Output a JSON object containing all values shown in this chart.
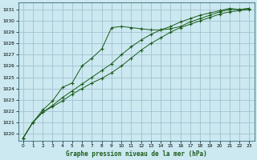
{
  "bg_color": "#cce8f0",
  "plot_bg_color": "#cce8f0",
  "grid_color": "#99bbcc",
  "line_color": "#1a5c1a",
  "xlabel": "Graphe pression niveau de la mer (hPa)",
  "xlim_min": -0.5,
  "xlim_max": 23.5,
  "ylim_min": 1019.4,
  "ylim_max": 1031.6,
  "yticks": [
    1020,
    1021,
    1022,
    1023,
    1024,
    1025,
    1026,
    1027,
    1028,
    1029,
    1030,
    1031
  ],
  "xticks": [
    0,
    1,
    2,
    3,
    4,
    5,
    6,
    7,
    8,
    9,
    10,
    11,
    12,
    13,
    14,
    15,
    16,
    17,
    18,
    19,
    20,
    21,
    22,
    23
  ],
  "series1": [
    1019.6,
    1021.0,
    1021.9,
    1022.4,
    1022.9,
    1023.5,
    1024.0,
    1024.5,
    1024.9,
    1025.4,
    1026.0,
    1026.7,
    1027.4,
    1028.0,
    1028.5,
    1029.0,
    1029.4,
    1029.7,
    1030.0,
    1030.3,
    1030.6,
    1030.8,
    1030.9,
    1031.0
  ],
  "series2": [
    1019.6,
    1021.0,
    1021.9,
    1022.5,
    1023.2,
    1023.8,
    1024.4,
    1025.0,
    1025.6,
    1026.2,
    1027.0,
    1027.7,
    1028.3,
    1028.8,
    1029.2,
    1029.5,
    1029.9,
    1030.2,
    1030.5,
    1030.7,
    1030.9,
    1031.1,
    1031.0,
    1031.1
  ],
  "series3": [
    1019.6,
    1021.0,
    1022.1,
    1022.9,
    1024.1,
    1024.5,
    1026.0,
    1026.7,
    1027.5,
    1029.4,
    1029.5,
    1029.4,
    1029.3,
    1029.2,
    1029.2,
    1029.3,
    1029.5,
    1029.9,
    1030.2,
    1030.5,
    1030.8,
    1031.0,
    1031.0,
    1031.1
  ]
}
